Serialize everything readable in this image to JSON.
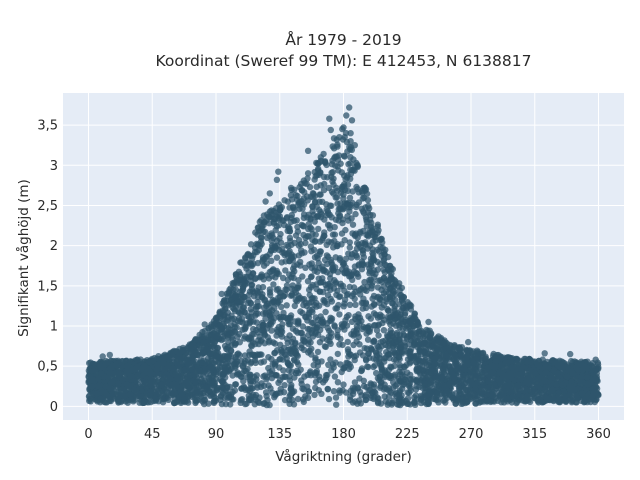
{
  "chart_data": {
    "type": "scatter",
    "title_line1": "År 1979 - 2019",
    "title_line2": "Koordinat (Sweref 99 TM): E 412453, N 6138817",
    "xlabel": "Vågriktning (grader)",
    "ylabel": "Signifikant våghöjd (m)",
    "xlim": [
      -18,
      378
    ],
    "ylim": [
      -0.17,
      3.9
    ],
    "xticks": [
      0,
      45,
      90,
      135,
      180,
      225,
      270,
      315,
      360
    ],
    "xtick_labels": [
      "0",
      "45",
      "90",
      "135",
      "180",
      "225",
      "270",
      "315",
      "360"
    ],
    "yticks": [
      0,
      0.5,
      1,
      1.5,
      2,
      2.5,
      3,
      3.5
    ],
    "ytick_labels": [
      "0",
      "0,5",
      "1",
      "1,5",
      "2",
      "2,5",
      "3",
      "3,5"
    ],
    "grid": true,
    "marker_color": "#2f566c",
    "plot_background": "#e5ecf6",
    "envelope": {
      "description_points": [
        {
          "x": 0,
          "y_min": 0.05,
          "y_max": 0.55
        },
        {
          "x": 45,
          "y_min": 0.04,
          "y_max": 0.6
        },
        {
          "x": 70,
          "y_min": 0.03,
          "y_max": 0.75
        },
        {
          "x": 90,
          "y_min": 0.02,
          "y_max": 1.1
        },
        {
          "x": 105,
          "y_min": 0.01,
          "y_max": 1.7
        },
        {
          "x": 120,
          "y_min": 0.01,
          "y_max": 2.3
        },
        {
          "x": 135,
          "y_min": 0.01,
          "y_max": 2.6
        },
        {
          "x": 155,
          "y_min": 0.01,
          "y_max": 2.9
        },
        {
          "x": 180,
          "y_min": 0.01,
          "y_max": 3.5
        },
        {
          "x": 200,
          "y_min": 0.01,
          "y_max": 2.5
        },
        {
          "x": 215,
          "y_min": 0.01,
          "y_max": 1.7
        },
        {
          "x": 235,
          "y_min": 0.02,
          "y_max": 1.0
        },
        {
          "x": 260,
          "y_min": 0.03,
          "y_max": 0.75
        },
        {
          "x": 300,
          "y_min": 0.04,
          "y_max": 0.6
        },
        {
          "x": 360,
          "y_min": 0.05,
          "y_max": 0.55
        }
      ]
    },
    "outliers": [
      {
        "x": 184,
        "y": 3.72
      },
      {
        "x": 182,
        "y": 3.62
      },
      {
        "x": 170,
        "y": 3.58
      },
      {
        "x": 186,
        "y": 3.56
      },
      {
        "x": 180,
        "y": 3.47
      },
      {
        "x": 185,
        "y": 3.4
      },
      {
        "x": 171,
        "y": 3.44
      },
      {
        "x": 177,
        "y": 3.35
      },
      {
        "x": 185,
        "y": 3.3
      },
      {
        "x": 188,
        "y": 3.25
      },
      {
        "x": 155,
        "y": 3.18
      },
      {
        "x": 164,
        "y": 3.1
      },
      {
        "x": 167,
        "y": 3.05
      },
      {
        "x": 178,
        "y": 3.02
      },
      {
        "x": 190,
        "y": 2.98
      },
      {
        "x": 134,
        "y": 2.92
      },
      {
        "x": 133,
        "y": 2.82
      },
      {
        "x": 155,
        "y": 2.9
      },
      {
        "x": 125,
        "y": 2.55
      },
      {
        "x": 128,
        "y": 2.65
      },
      {
        "x": 94,
        "y": 1.4
      },
      {
        "x": 82,
        "y": 1.02
      },
      {
        "x": 78,
        "y": 0.76
      },
      {
        "x": 10,
        "y": 0.62
      },
      {
        "x": 15,
        "y": 0.64
      },
      {
        "x": 340,
        "y": 0.65
      },
      {
        "x": 322,
        "y": 0.66
      },
      {
        "x": 268,
        "y": 0.8
      },
      {
        "x": 240,
        "y": 1.05
      },
      {
        "x": 358,
        "y": 0.58
      }
    ]
  }
}
